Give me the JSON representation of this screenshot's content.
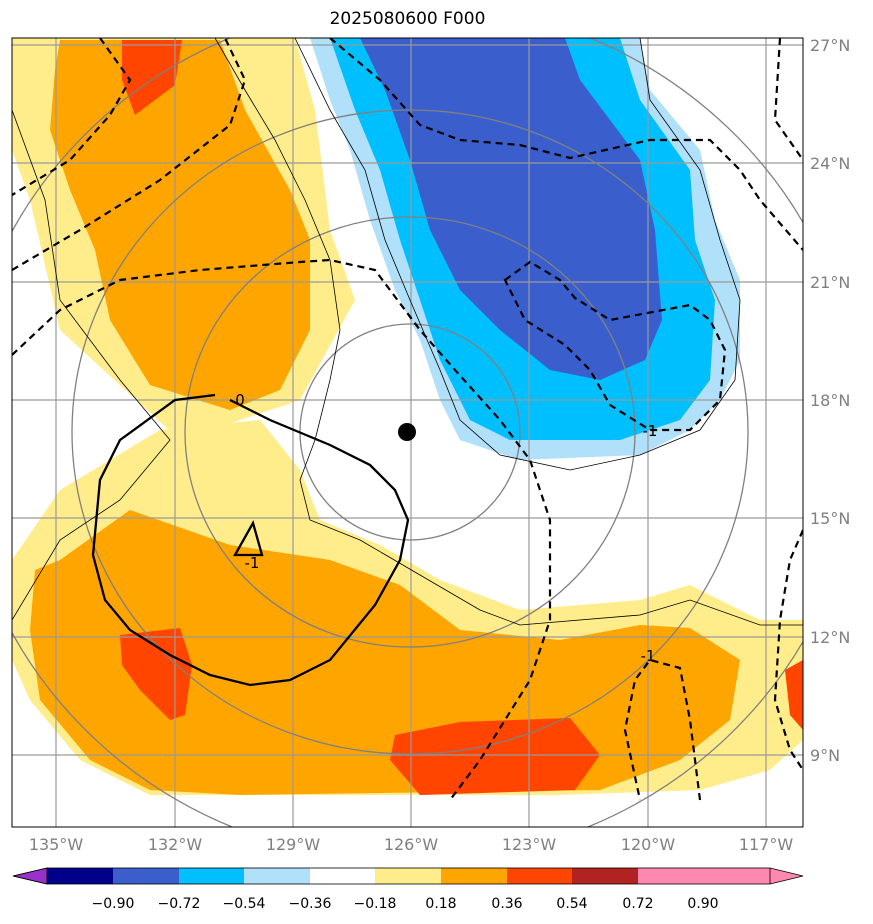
{
  "title": "2025080600 F000",
  "lon_labels": [
    "135°W",
    "132°W",
    "129°W",
    "126°W",
    "123°W",
    "120°W",
    "117°W"
  ],
  "lat_labels": [
    "27°N",
    "24°N",
    "21°N",
    "18°N",
    "15°N",
    "12°N",
    "9°N"
  ],
  "colorbar": {
    "ticks": [
      "−0.90",
      "−0.72",
      "−0.54",
      "−0.36",
      "−0.18",
      "0.18",
      "0.36",
      "0.54",
      "0.72",
      "0.90"
    ],
    "colors": [
      "#9932cc",
      "#00008b",
      "#3a5fcd",
      "#00bfff",
      "#b0e0fa",
      "#ffffff",
      "#ffec8b",
      "#ffa500",
      "#ff4500",
      "#b22222",
      "#ff88b0"
    ]
  },
  "contour_labels": {
    "zero": "0",
    "neg_a": "-1",
    "neg_b": "-1",
    "neg_c": "-1"
  },
  "center_marker": {
    "lon": -126.0,
    "lat": 17.2
  }
}
